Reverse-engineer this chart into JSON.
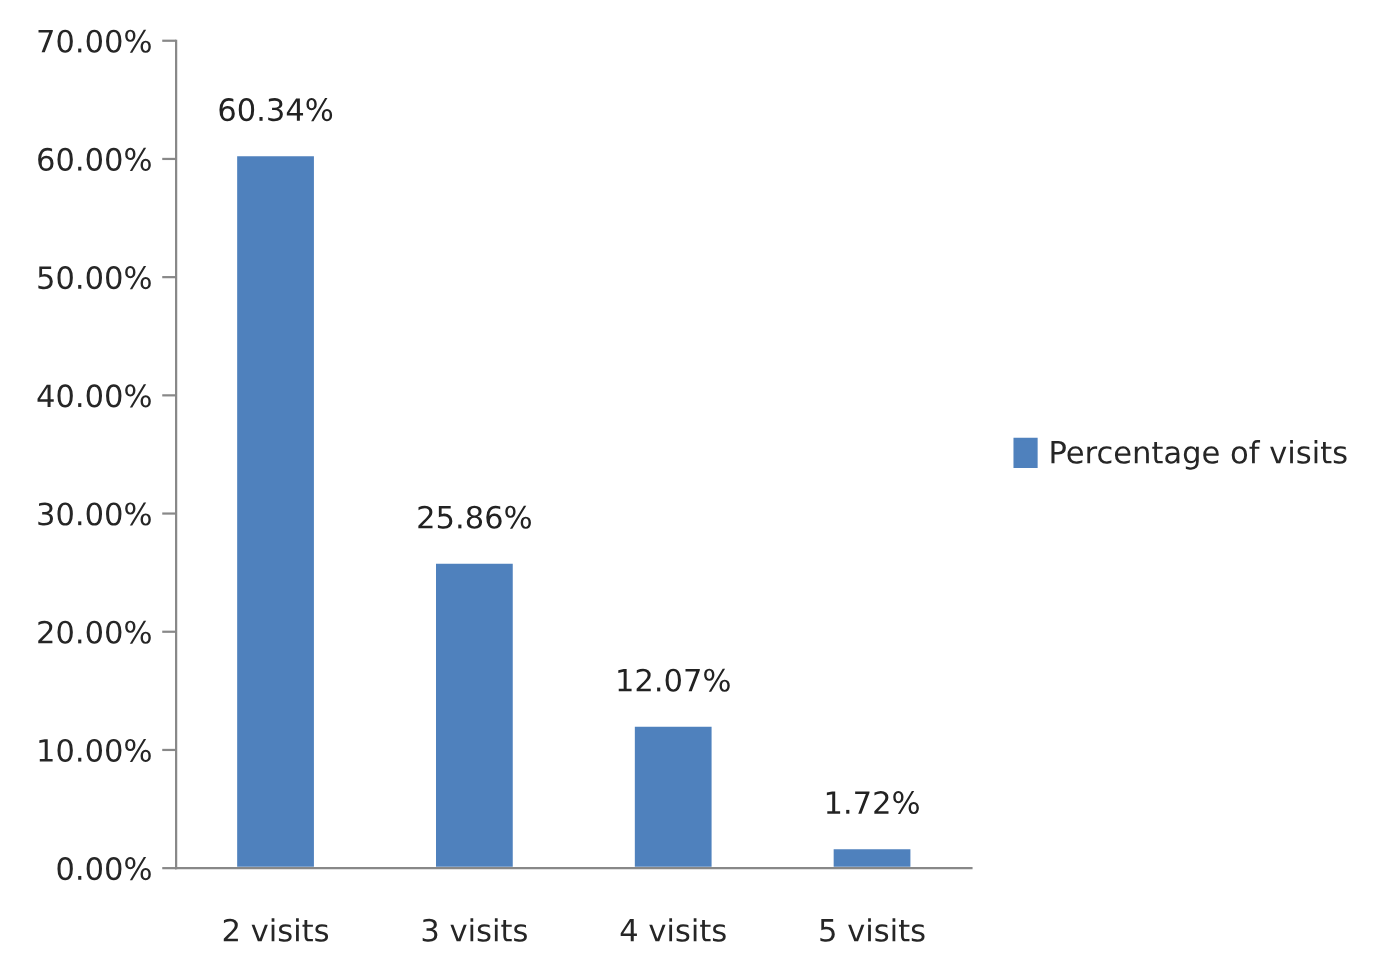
{
  "chart_data": {
    "type": "bar",
    "categories": [
      "2 visits",
      "3 visits",
      "4 visits",
      "5 visits"
    ],
    "series": [
      {
        "name": "Percentage of visits",
        "color": "#4f81bd",
        "values": [
          60.34,
          25.86,
          12.07,
          1.72
        ],
        "value_labels": [
          "60.34%",
          "25.86%",
          "12.07%",
          "1.72%"
        ]
      }
    ],
    "ylim": [
      0,
      70
    ],
    "yticks": [
      {
        "value": 0,
        "label": "0.00%"
      },
      {
        "value": 10,
        "label": "10.00%"
      },
      {
        "value": 20,
        "label": "20.00%"
      },
      {
        "value": 30,
        "label": "30.00%"
      },
      {
        "value": 40,
        "label": "40.00%"
      },
      {
        "value": 50,
        "label": "50.00%"
      },
      {
        "value": 60,
        "label": "60.00%"
      },
      {
        "value": 70,
        "label": "70.00%"
      }
    ],
    "grid": false,
    "legend": "right"
  }
}
